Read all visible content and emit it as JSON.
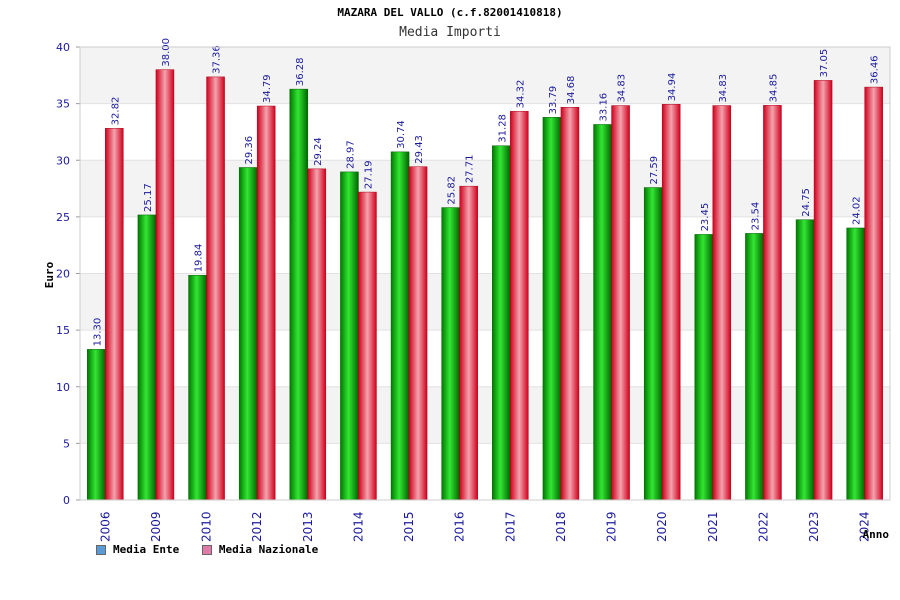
{
  "chart_data": {
    "type": "bar",
    "title": "MAZARA DEL VALLO (c.f.82001410818)",
    "subtitle": "Media Importi",
    "xlabel": "Anno",
    "ylabel": "Euro",
    "ylim": [
      0,
      40
    ],
    "yticks": [
      0,
      5,
      10,
      15,
      20,
      25,
      30,
      35,
      40
    ],
    "grid": true,
    "legend_position": "bottom-left",
    "categories": [
      "2006",
      "2009",
      "2010",
      "2012",
      "2013",
      "2014",
      "2015",
      "2016",
      "2017",
      "2018",
      "2019",
      "2020",
      "2021",
      "2022",
      "2023",
      "2024"
    ],
    "series": [
      {
        "name": "Media Ente",
        "color": "#00b000",
        "legend_color": "#5b9bd5",
        "values": [
          13.3,
          25.17,
          19.84,
          29.36,
          36.28,
          28.97,
          30.74,
          25.82,
          31.28,
          33.79,
          33.16,
          27.59,
          23.45,
          23.54,
          24.75,
          24.02
        ],
        "labels": [
          "13.30",
          "25.17",
          "19.84",
          "29.36",
          "36.28",
          "28.97",
          "30.74",
          "25.82",
          "31.28",
          "33.79",
          "33.16",
          "27.59",
          "23.45",
          "23.54",
          "24.75",
          "24.02"
        ]
      },
      {
        "name": "Media Nazionale",
        "color": "#e8102a",
        "legend_color": "#e07aa8",
        "values": [
          32.82,
          38.0,
          37.36,
          34.79,
          29.24,
          27.19,
          29.43,
          27.71,
          34.32,
          34.68,
          34.83,
          34.94,
          34.83,
          34.85,
          37.05,
          36.46
        ],
        "labels": [
          "32.82",
          "38.00",
          "37.36",
          "34.79",
          "29.24",
          "27.19",
          "29.43",
          "27.71",
          "34.32",
          "34.68",
          "34.83",
          "34.94",
          "34.83",
          "34.85",
          "37.05",
          "36.46"
        ]
      }
    ]
  }
}
